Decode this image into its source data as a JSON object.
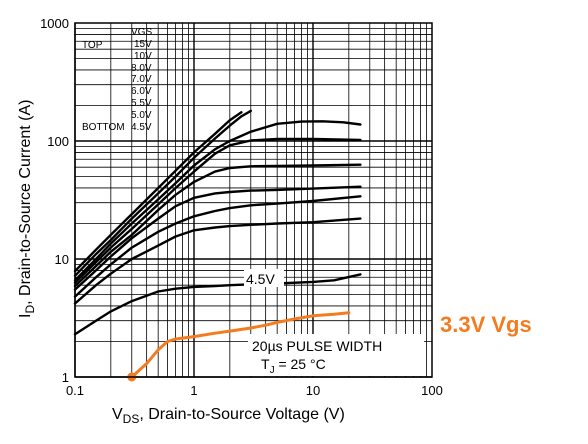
{
  "chart_data": {
    "type": "line",
    "x_scale": "log",
    "y_scale": "log",
    "xlim": [
      0.1,
      100
    ],
    "ylim": [
      1,
      1000
    ],
    "grid": true,
    "x_ticks": [
      "0.1",
      "1",
      "10",
      "100"
    ],
    "y_ticks": [
      "1",
      "10",
      "100",
      "1000"
    ],
    "xlabel": "VDS, Drain-to-Source Voltage (V)",
    "xlabel_parts": {
      "main": "V",
      "sub": "DS",
      "rest": ", Drain-to-Source Voltage (V)"
    },
    "ylabel": "ID, Drain-to-Source Current (A)",
    "ylabel_parts": {
      "main": "I",
      "sub": "D",
      "rest": ",  Drain-to-Source Current (A)"
    },
    "legend": {
      "placement": "top-left",
      "top_label": "TOP",
      "bottom_label": "BOTTOM",
      "header": "VGS",
      "entries": [
        "15V",
        "10V",
        "8.0V",
        "7.0V",
        "6.0V",
        "5.5V",
        "5.0V",
        "4.5V"
      ]
    },
    "annotations": {
      "pulse_width": "20µs PULSE WIDTH",
      "tj_main": "T",
      "tj_sub": "J",
      "tj_rest": " = 25 °C",
      "curve_label_45": "4.5V",
      "overlay_label": "3.3V Vgs",
      "overlay_color": "#f47c20"
    },
    "series": [
      {
        "x": [
          0.1,
          0.15,
          0.2,
          0.3,
          0.5,
          0.7,
          1.0,
          1.5,
          2.0,
          2.5
        ],
        "y": [
          7.9,
          12,
          16,
          24,
          40,
          56,
          80,
          115,
          150,
          175
        ]
      },
      {
        "x": [
          0.1,
          0.15,
          0.2,
          0.3,
          0.5,
          0.7,
          1.0,
          1.5,
          2.0,
          2.5,
          3.0
        ],
        "y": [
          7.2,
          11,
          14.5,
          22,
          36,
          50,
          72,
          105,
          135,
          162,
          180
        ]
      },
      {
        "x": [
          0.1,
          0.15,
          0.2,
          0.3,
          0.5,
          0.7,
          1.0,
          1.5,
          2.0,
          3.0,
          5.0,
          8.0,
          12,
          18,
          25
        ],
        "y": [
          6.6,
          10,
          13.5,
          20,
          32,
          44,
          62,
          85,
          100,
          120,
          140,
          146,
          147,
          144,
          138
        ]
      },
      {
        "x": [
          0.1,
          0.15,
          0.2,
          0.3,
          0.5,
          0.7,
          1.0,
          1.5,
          2.0,
          3.0,
          5.0,
          10,
          25
        ],
        "y": [
          6.3,
          9.4,
          12.5,
          18,
          29,
          40,
          55,
          78,
          92,
          101,
          104,
          104,
          102
        ]
      },
      {
        "x": [
          0.1,
          0.15,
          0.2,
          0.3,
          0.5,
          0.7,
          1.0,
          1.5,
          2.0,
          3.0,
          5.0,
          10,
          25
        ],
        "y": [
          5.9,
          8.7,
          11.5,
          16,
          26,
          35,
          45,
          55,
          59,
          61,
          61.5,
          62,
          63
        ]
      },
      {
        "x": [
          0.1,
          0.15,
          0.2,
          0.3,
          0.5,
          0.7,
          1.0,
          1.5,
          2.0,
          3.0,
          5.0,
          10,
          25
        ],
        "y": [
          5.5,
          8,
          10.5,
          15,
          22,
          28,
          33,
          36,
          37,
          38,
          38.5,
          39.5,
          41
        ]
      },
      {
        "x": [
          0.1,
          0.15,
          0.2,
          0.3,
          0.5,
          0.7,
          1.0,
          1.5,
          2.0,
          3.0,
          5.0,
          10,
          25
        ],
        "y": [
          4.8,
          7,
          9,
          12.5,
          17,
          20,
          23,
          25.5,
          27,
          28.5,
          29.5,
          31,
          34
        ]
      },
      {
        "x": [
          0.1,
          0.15,
          0.2,
          0.3,
          0.5,
          0.7,
          1.0,
          1.5,
          2.0,
          3.0,
          5.0,
          10,
          25
        ],
        "y": [
          4.2,
          6,
          7.5,
          10,
          13,
          15.5,
          17.5,
          18.5,
          19,
          19.5,
          20,
          20.5,
          22
        ]
      },
      {
        "x": [
          0.1,
          0.15,
          0.2,
          0.3,
          0.5,
          0.7,
          1.0,
          1.5,
          2.0,
          3.0,
          5.0,
          10,
          15,
          25
        ],
        "y": [
          2.3,
          3,
          3.6,
          4.4,
          5.3,
          5.6,
          5.8,
          5.9,
          6.0,
          6.1,
          6.2,
          6.4,
          6.6,
          7.4
        ]
      },
      {
        "name": "3.3V Vgs",
        "color": "#f47c20",
        "x": [
          0.3,
          0.4,
          0.5,
          0.6,
          0.7,
          1.0,
          1.5,
          2.0,
          3.0,
          4.0,
          5.0,
          7.0,
          10,
          15,
          20
        ],
        "y": [
          1.0,
          1.3,
          1.7,
          2.0,
          2.1,
          2.2,
          2.35,
          2.45,
          2.6,
          2.75,
          2.9,
          3.1,
          3.3,
          3.4,
          3.5
        ]
      }
    ]
  }
}
